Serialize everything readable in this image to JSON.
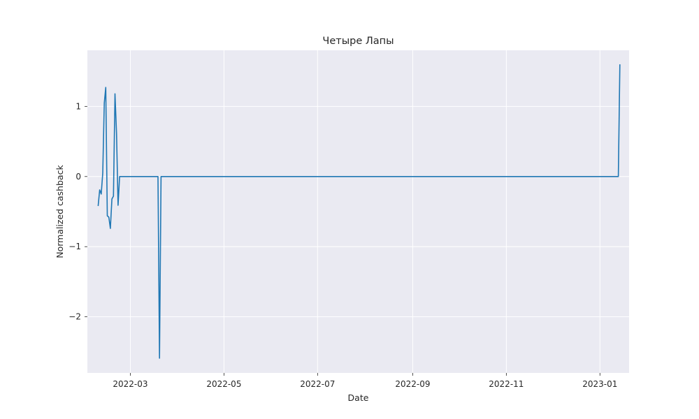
{
  "chart_data": {
    "type": "line",
    "title": "Четыре Лапы",
    "xlabel": "Date",
    "ylabel": "Normalized cashback",
    "xlim": [
      "2022-02-01",
      "2023-01-20"
    ],
    "ylim": [
      -2.8,
      1.8
    ],
    "x_ticks": [
      {
        "date": "2022-03-01",
        "label": "2022-03"
      },
      {
        "date": "2022-05-01",
        "label": "2022-05"
      },
      {
        "date": "2022-07-01",
        "label": "2022-07"
      },
      {
        "date": "2022-09-01",
        "label": "2022-09"
      },
      {
        "date": "2022-11-01",
        "label": "2022-11"
      },
      {
        "date": "2023-01-01",
        "label": "2023-01"
      }
    ],
    "y_ticks": [
      {
        "value": 1,
        "label": "1"
      },
      {
        "value": 0,
        "label": "0"
      },
      {
        "value": -1,
        "label": "−1"
      },
      {
        "value": -2,
        "label": "−2"
      }
    ],
    "grid": true,
    "colors": {
      "background": "#eaeaf2",
      "line": "#1f77b4",
      "grid": "#ffffff"
    },
    "series": [
      {
        "color": "#1f77b4",
        "points": [
          {
            "x": "2022-02-08",
            "y": -0.42
          },
          {
            "x": "2022-02-09",
            "y": -0.19
          },
          {
            "x": "2022-02-10",
            "y": -0.25
          },
          {
            "x": "2022-02-11",
            "y": 0.05
          },
          {
            "x": "2022-02-12",
            "y": 1.05
          },
          {
            "x": "2022-02-13",
            "y": 1.27
          },
          {
            "x": "2022-02-14",
            "y": -0.56
          },
          {
            "x": "2022-02-15",
            "y": -0.58
          },
          {
            "x": "2022-02-16",
            "y": -0.74
          },
          {
            "x": "2022-02-17",
            "y": -0.32
          },
          {
            "x": "2022-02-18",
            "y": -0.28
          },
          {
            "x": "2022-02-19",
            "y": 1.18
          },
          {
            "x": "2022-02-20",
            "y": 0.62
          },
          {
            "x": "2022-02-21",
            "y": -0.41
          },
          {
            "x": "2022-02-22",
            "y": 0.0
          },
          {
            "x": "2022-03-19",
            "y": 0.0
          },
          {
            "x": "2022-03-20",
            "y": -2.59
          },
          {
            "x": "2022-03-21",
            "y": 0.0
          },
          {
            "x": "2023-01-13",
            "y": 0.0
          },
          {
            "x": "2023-01-14",
            "y": 1.6
          }
        ]
      }
    ]
  }
}
